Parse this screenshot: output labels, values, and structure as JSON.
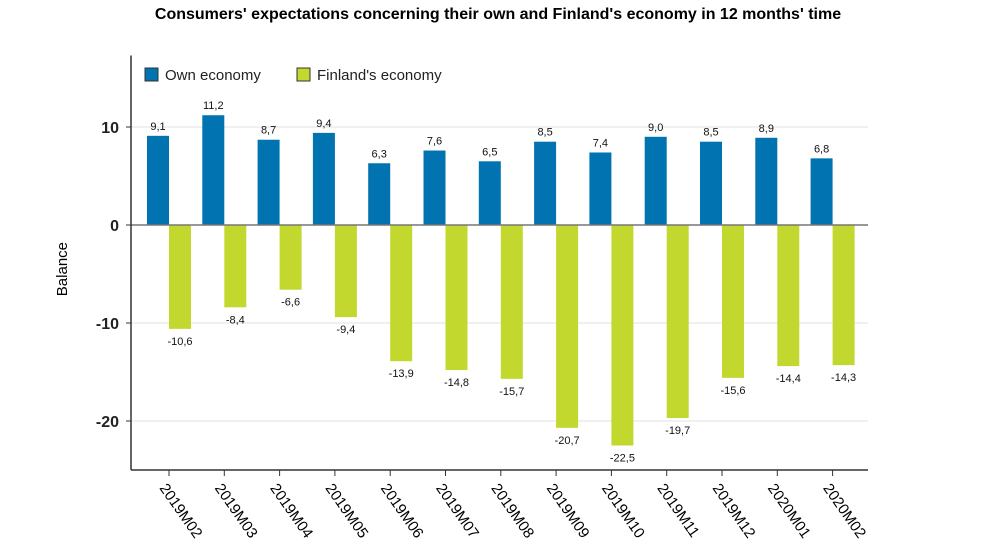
{
  "chart_data": {
    "type": "bar",
    "title": "Consumers' expectations concerning their own and Finland's economy in 12 months' time",
    "xlabel": "",
    "ylabel": "Balance",
    "ylim": [
      -25,
      17.3
    ],
    "yticks": [
      10,
      0,
      -10,
      -20
    ],
    "grid": true,
    "legend_position": "top-left",
    "categories": [
      "2019M02",
      "2019M03",
      "2019M04",
      "2019M05",
      "2019M06",
      "2019M07",
      "2019M08",
      "2019M09",
      "2019M10",
      "2019M11",
      "2019M12",
      "2020M01",
      "2020M02"
    ],
    "series": [
      {
        "name": "Own economy",
        "color": "#0073b0",
        "values": [
          9.1,
          11.2,
          8.7,
          9.4,
          6.3,
          7.6,
          6.5,
          8.5,
          7.4,
          9.0,
          8.5,
          8.9,
          6.8
        ],
        "labels": [
          "9,1",
          "11,2",
          "8,7",
          "9,4",
          "6,3",
          "7,6",
          "6,5",
          "8,5",
          "7,4",
          "9,0",
          "8,5",
          "8,9",
          "6,8"
        ]
      },
      {
        "name": "Finland's economy",
        "color": "#c3d82e",
        "values": [
          -10.6,
          -8.4,
          -6.6,
          -9.4,
          -13.9,
          -14.8,
          -15.7,
          -20.7,
          -22.5,
          -19.7,
          -15.6,
          -14.4,
          -14.3
        ],
        "labels": [
          "-10,6",
          "-8,4",
          "-6,6",
          "-9,4",
          "-13,9",
          "-14,8",
          "-15,7",
          "-20,7",
          "-22,5",
          "-19,7",
          "-15,6",
          "-14,4",
          "-14,3"
        ]
      }
    ]
  }
}
